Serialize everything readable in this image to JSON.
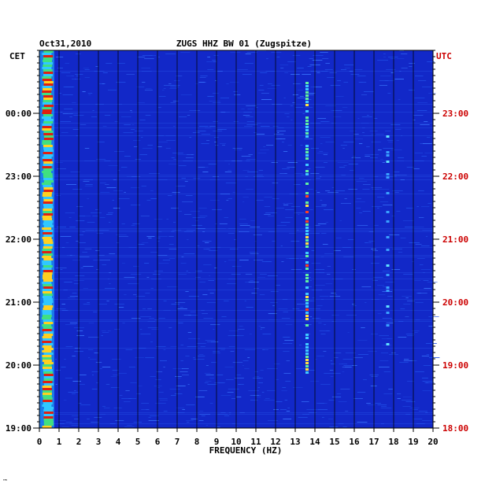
{
  "chart_data": {
    "type": "heatmap",
    "title": "ZUGS HHZ BW 01 (Zugspitze)",
    "date": "Oct31,2010",
    "left_timezone": "CET",
    "right_timezone": "UTC",
    "xlabel": "FREQUENCY (HZ)",
    "xlim": [
      0,
      20
    ],
    "x_ticks": [
      "0",
      "1",
      "2",
      "3",
      "4",
      "5",
      "6",
      "7",
      "8",
      "9",
      "10",
      "11",
      "12",
      "13",
      "14",
      "15",
      "16",
      "17",
      "18",
      "19",
      "20"
    ],
    "y_ticks_left": [
      "00:00",
      "23:00",
      "22:00",
      "21:00",
      "20:00",
      "19:00"
    ],
    "y_ticks_right": [
      "23:00",
      "22:00",
      "21:00",
      "20:00",
      "19:00",
      "18:00"
    ],
    "y_tick_hours_from_bottom": [
      5,
      4,
      3,
      2,
      1,
      0
    ],
    "time_span_hours": 6,
    "colors": {
      "background_blue": "#1228c8",
      "grid": "#000000",
      "utc_text": "#cc0000",
      "text": "#000000"
    },
    "features": [
      {
        "label": "low-frequency band",
        "freq_range_hz": [
          0.2,
          0.6
        ],
        "intensity": "high"
      },
      {
        "label": "persistent line",
        "freq_hz": 13.6,
        "intensity": "medium"
      },
      {
        "label": "intermittent line",
        "freq_hz": 17.7,
        "intensity": "low"
      }
    ],
    "footer_mark": "™"
  }
}
